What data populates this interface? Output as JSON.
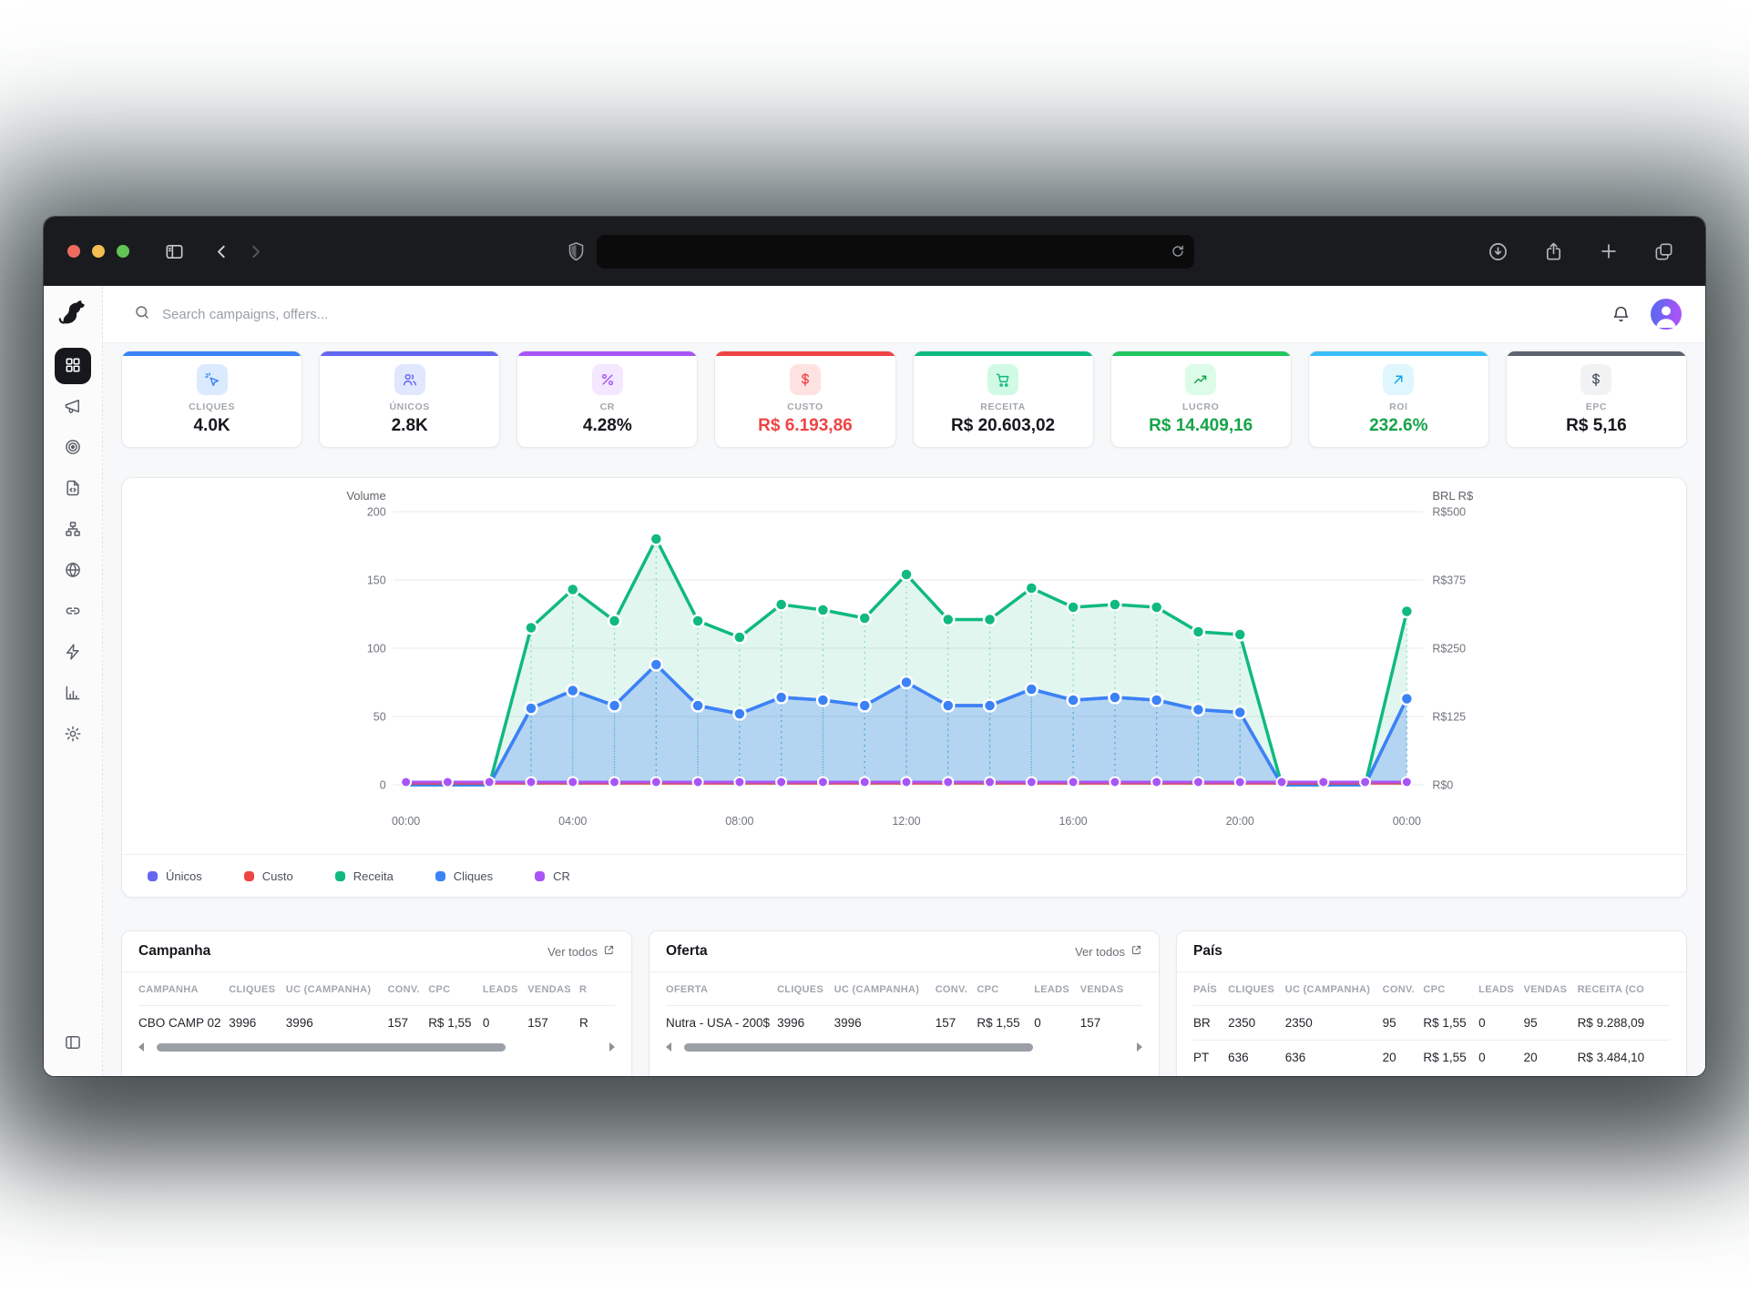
{
  "browser": {
    "traffic_lights": [
      "#ee6a5f",
      "#f5bd4f",
      "#61c454"
    ],
    "chrome_bg": "#1a1b1e",
    "url_value": ""
  },
  "app": {
    "search_placeholder": "Search campaigns, offers...",
    "avatar_gradient": [
      "#6366f1",
      "#a855f7"
    ]
  },
  "sidebar": {
    "icons": [
      "dog-logo",
      "dashboard-grid",
      "megaphone",
      "target",
      "file-code",
      "sitemap",
      "globe",
      "link",
      "zap",
      "bar-chart",
      "settings",
      "panel-left"
    ],
    "active": "dashboard-grid"
  },
  "kpis": [
    {
      "label": "CLIQUES",
      "value": "4.0K",
      "accent": "#3b82f6",
      "icon": "cursor-click-icon",
      "chip_bg": "#dbeafe",
      "chip_fg": "#3b82f6",
      "value_color": "#16181d"
    },
    {
      "label": "ÚNICOS",
      "value": "2.8K",
      "accent": "#6366f1",
      "icon": "users-icon",
      "chip_bg": "#e0e7ff",
      "chip_fg": "#6366f1",
      "value_color": "#16181d"
    },
    {
      "label": "CR",
      "value": "4.28%",
      "accent": "#a855f7",
      "icon": "percent-icon",
      "chip_bg": "#f3e8ff",
      "chip_fg": "#a855f7",
      "value_color": "#16181d"
    },
    {
      "label": "CUSTO",
      "value": "R$ 6.193,86",
      "accent": "#ef4444",
      "icon": "dollar-icon",
      "chip_bg": "#fee2e2",
      "chip_fg": "#ef4444",
      "value_color": "#ef4444"
    },
    {
      "label": "RECEITA",
      "value": "R$ 20.603,02",
      "accent": "#10b981",
      "icon": "cart-icon",
      "chip_bg": "#d1fae5",
      "chip_fg": "#10b981",
      "value_color": "#16181d"
    },
    {
      "label": "LUCRO",
      "value": "R$ 14.409,16",
      "accent": "#22c55e",
      "icon": "trend-up-icon",
      "chip_bg": "#dcfce7",
      "chip_fg": "#16a34a",
      "value_color": "#16a34a"
    },
    {
      "label": "ROI",
      "value": "232.6%",
      "accent": "#38bdf8",
      "icon": "arrow-up-right-icon",
      "chip_bg": "#dff6fd",
      "chip_fg": "#0ea5e9",
      "value_color": "#16a34a"
    },
    {
      "label": "EPC",
      "value": "R$ 5,16",
      "accent": "#5b6470",
      "icon": "dollar-icon",
      "chip_bg": "#f1f2f4",
      "chip_fg": "#4b5563",
      "value_color": "#16181d"
    }
  ],
  "chart_data": {
    "type": "line",
    "hours": 25,
    "x_tick_hours": [
      0,
      4,
      8,
      12,
      16,
      20,
      24
    ],
    "x_tick_labels": [
      "00:00",
      "04:00",
      "08:00",
      "12:00",
      "16:00",
      "20:00",
      "00:00"
    ],
    "left_axis": {
      "title": "Volume",
      "ticks": [
        0,
        50,
        100,
        150,
        200
      ],
      "max": 200
    },
    "right_axis": {
      "title": "BRL R$",
      "tick_labels": [
        "R$0",
        "R$125",
        "R$250",
        "R$375",
        "R$500"
      ],
      "max": 500
    },
    "grid": true,
    "legend_position": "bottom",
    "series": [
      {
        "name": "Únicos",
        "color": "#6366f1",
        "values": [
          0,
          0,
          0,
          56,
          69,
          58,
          88,
          58,
          52,
          64,
          62,
          58,
          75,
          58,
          58,
          70,
          62,
          64,
          62,
          55,
          53,
          0,
          0,
          0,
          63
        ]
      },
      {
        "name": "Custo",
        "color": "#ef4444",
        "values": [
          1,
          1,
          1,
          1,
          1,
          1,
          1,
          1,
          1,
          1,
          1,
          1,
          1,
          1,
          1,
          1,
          1,
          1,
          1,
          1,
          1,
          1,
          1,
          1,
          1
        ]
      },
      {
        "name": "Receita",
        "color": "#10b981",
        "fill": "rgba(16,185,129,0.12)",
        "values": [
          0,
          0,
          0,
          115,
          143,
          120,
          180,
          120,
          108,
          132,
          128,
          122,
          154,
          121,
          121,
          144,
          130,
          132,
          130,
          112,
          110,
          0,
          0,
          0,
          127
        ]
      },
      {
        "name": "Cliques",
        "color": "#3b82f6",
        "fill": "rgba(59,130,246,0.28)",
        "values": [
          0,
          0,
          0,
          56,
          69,
          58,
          88,
          58,
          52,
          64,
          62,
          58,
          75,
          58,
          58,
          70,
          62,
          64,
          62,
          55,
          53,
          0,
          0,
          0,
          63
        ]
      },
      {
        "name": "CR",
        "color": "#a855f7",
        "values": [
          2,
          2,
          2,
          2,
          2,
          2,
          2,
          2,
          2,
          2,
          2,
          2,
          2,
          2,
          2,
          2,
          2,
          2,
          2,
          2,
          2,
          2,
          2,
          2,
          2
        ]
      }
    ]
  },
  "panels": [
    {
      "title": "Campanha",
      "link": "Ver todos",
      "headers": [
        "CAMPANHA",
        "CLIQUES",
        "UC (CAMPANHA)",
        "CONV.",
        "CPC",
        "LEADS",
        "VENDAS",
        "R"
      ],
      "rows": [
        [
          "CBO CAMP 02",
          "3996",
          "3996",
          "157",
          "R$ 1,55",
          "0",
          "157",
          "R"
        ]
      ],
      "scrollbar": true
    },
    {
      "title": "Oferta",
      "link": "Ver todos",
      "headers": [
        "OFERTA",
        "CLIQUES",
        "UC (CAMPANHA)",
        "CONV.",
        "CPC",
        "LEADS",
        "VENDAS"
      ],
      "rows": [
        [
          "Nutra - USA - 200$",
          "3996",
          "3996",
          "157",
          "R$ 1,55",
          "0",
          "157"
        ]
      ],
      "scrollbar": true
    },
    {
      "title": "País",
      "link": "",
      "headers": [
        "PAÍS",
        "CLIQUES",
        "UC (CAMPANHA)",
        "CONV.",
        "CPC",
        "LEADS",
        "VENDAS",
        "RECEITA (CO"
      ],
      "rows": [
        [
          "BR",
          "2350",
          "2350",
          "95",
          "R$ 1,55",
          "0",
          "95",
          "R$ 9.288,09"
        ],
        [
          "PT",
          "636",
          "636",
          "20",
          "R$ 1,55",
          "0",
          "20",
          "R$ 3.484,10"
        ]
      ],
      "scrollbar": false
    }
  ]
}
